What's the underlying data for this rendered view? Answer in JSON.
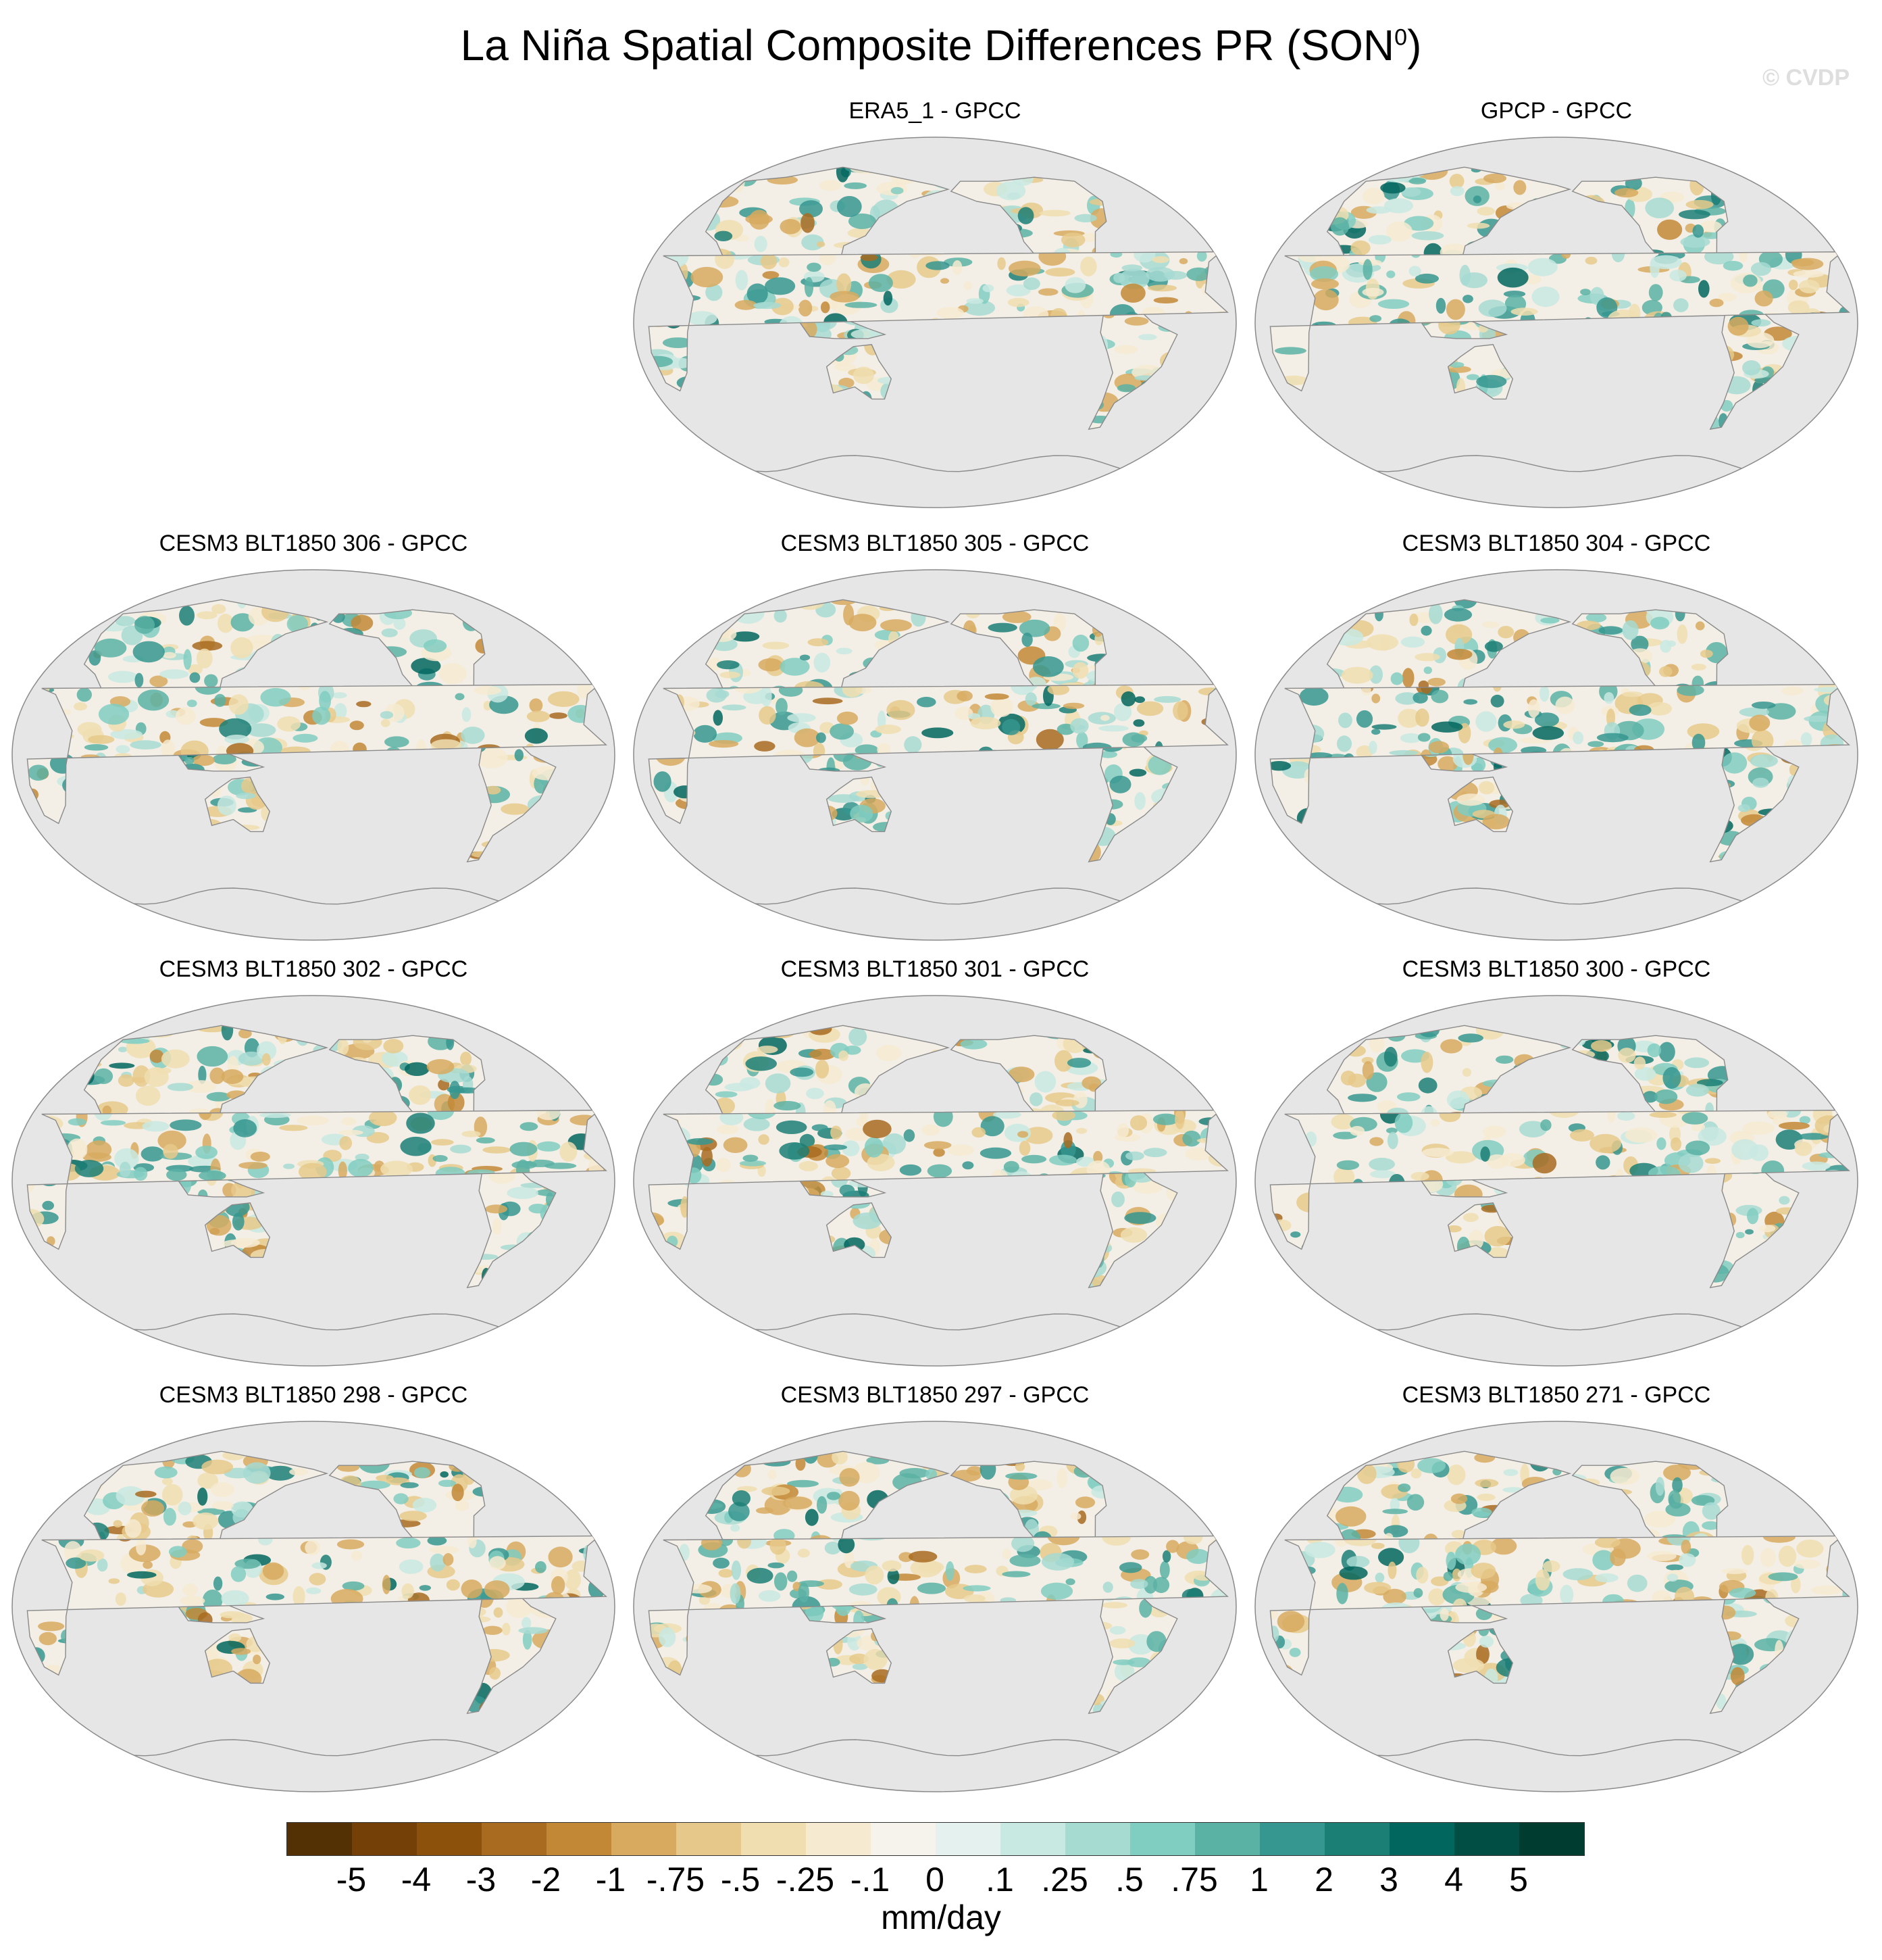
{
  "figure": {
    "title_main": "La Niña Spatial Composite Differences PR (SON",
    "title_sup": "0",
    "title_close": ")",
    "watermark": "© CVDP"
  },
  "panels": [
    {
      "title": "ERA5_1 - GPCC",
      "position": "row1-center"
    },
    {
      "title": "GPCP - GPCC",
      "position": "row1-right"
    },
    {
      "title": "CESM3 BLT1850 306 - GPCC",
      "position": "row2-left"
    },
    {
      "title": "CESM3 BLT1850 305 - GPCC",
      "position": "row2-center"
    },
    {
      "title": "CESM3 BLT1850 304 - GPCC",
      "position": "row2-right"
    },
    {
      "title": "CESM3 BLT1850 302 - GPCC",
      "position": "row3-left"
    },
    {
      "title": "CESM3 BLT1850 301 - GPCC",
      "position": "row3-center"
    },
    {
      "title": "CESM3 BLT1850 300 - GPCC",
      "position": "row3-right"
    },
    {
      "title": "CESM3 BLT1850 298 - GPCC",
      "position": "row4-left"
    },
    {
      "title": "CESM3 BLT1850 297 - GPCC",
      "position": "row4-center"
    },
    {
      "title": "CESM3 BLT1850 271 - GPCC",
      "position": "row4-right"
    }
  ],
  "map": {
    "projection": "robinson-like, pacific-centered",
    "ocean_color": "#e6e6e6",
    "coast_color": "#8a8a8a"
  },
  "colorbar": {
    "labels": [
      "-5",
      "-4",
      "-3",
      "-2",
      "-1",
      "-.75",
      "-.5",
      "-.25",
      "-.1",
      "0",
      ".1",
      ".25",
      ".5",
      ".75",
      "1",
      "2",
      "3",
      "4",
      "5"
    ],
    "colors": [
      "#543005",
      "#744007",
      "#8c510a",
      "#a86b20",
      "#c28836",
      "#d7aa5f",
      "#e6c98a",
      "#f0deb0",
      "#f6ead0",
      "#f5f3ec",
      "#e4f1ee",
      "#c8e9e2",
      "#a6dbd2",
      "#80cdc1",
      "#5ab2a4",
      "#35978f",
      "#1c7f76",
      "#01665e",
      "#014e45",
      "#003c30"
    ],
    "units": "mm/day"
  }
}
